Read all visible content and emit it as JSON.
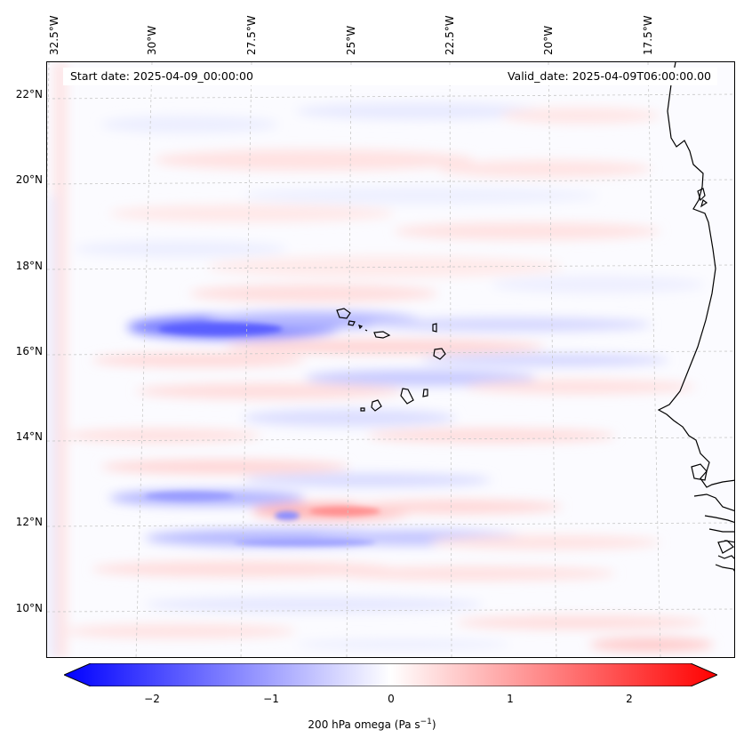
{
  "map": {
    "start_date": "Start date: 2025-04-09_00:00:00",
    "valid_date": "Valid_date: 2025-04-09T06:00:00.00",
    "lon_labels": [
      "32.5°W",
      "30°W",
      "27.5°W",
      "25°W",
      "22.5°W",
      "20°W",
      "17.5°W"
    ],
    "lat_labels": [
      "22°N",
      "20°N",
      "18°N",
      "16°N",
      "14°N",
      "12°N",
      "10°N"
    ]
  },
  "colorbar": {
    "ticks": [
      "−2",
      "−1",
      "0",
      "1",
      "2"
    ],
    "label": "200 hPa omega (Pa s",
    "label_exp": "−1",
    "label_close": ")",
    "min_color": "#0000ff",
    "mid_color": "#ffffff",
    "max_color": "#ff0000"
  }
}
